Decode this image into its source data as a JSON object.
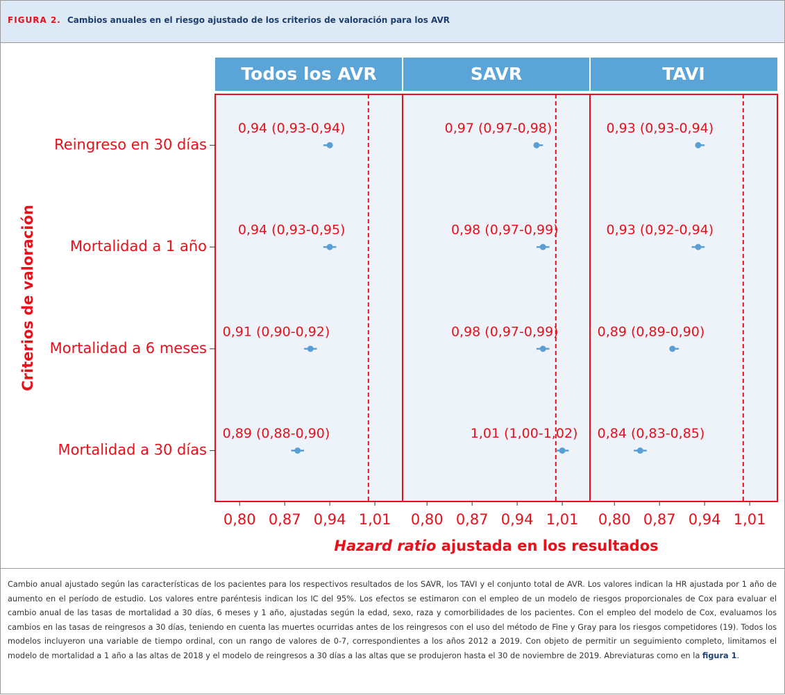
{
  "figure": {
    "label": "FIGURA 2.",
    "title": "Cambios anuales en el riesgo ajustado de los criterios de valoración para los AVR"
  },
  "chart_data": {
    "type": "forest",
    "ylabel": "Criterios de valoración",
    "xlabel_italic": "Hazard ratio",
    "xlabel_rest": " ajustada en los resultados",
    "categories": [
      "Reingreso en 30 días",
      "Mortalidad a 1 año",
      "Mortalidad a 6 meses",
      "Mortalidad a 30 días"
    ],
    "xlim": [
      0.762,
      1.053
    ],
    "xticks": [
      {
        "value": 0.8,
        "label": "0,80"
      },
      {
        "value": 0.87,
        "label": "0,87"
      },
      {
        "value": 0.94,
        "label": "0,94"
      },
      {
        "value": 1.01,
        "label": "1,01"
      }
    ],
    "reference": 1.0,
    "color": "#5a9fd4",
    "panels": [
      {
        "title": "Todos los AVR",
        "values": [
          0.94,
          0.94,
          0.91,
          0.89
        ],
        "lower": [
          0.93,
          0.93,
          0.9,
          0.88
        ],
        "upper": [
          0.94,
          0.95,
          0.92,
          0.9
        ],
        "value_labels": [
          "0,94 (0,93-0,94)",
          "0,94 (0,93-0,95)",
          "0,91 (0,90-0,92)",
          "0,89 (0,88-0,90)"
        ]
      },
      {
        "title": "SAVR",
        "values": [
          0.97,
          0.98,
          0.98,
          1.01
        ],
        "lower": [
          0.97,
          0.97,
          0.97,
          1.0
        ],
        "upper": [
          0.98,
          0.99,
          0.99,
          1.02
        ],
        "value_labels": [
          "0,97 (0,97-0,98)",
          "0,98 (0,97-0,99)",
          "0,98 (0,97-0,99)",
          "1,01 (1,00-1,02)"
        ]
      },
      {
        "title": "TAVI",
        "values": [
          0.93,
          0.93,
          0.89,
          0.84
        ],
        "lower": [
          0.93,
          0.92,
          0.89,
          0.83
        ],
        "upper": [
          0.94,
          0.94,
          0.9,
          0.85
        ],
        "value_labels": [
          "0,93 (0,93-0,94)",
          "0,93 (0,92-0,94)",
          "0,89 (0,89-0,90)",
          "0,84 (0,83-0,85)"
        ]
      }
    ]
  },
  "caption": {
    "text": "Cambio anual ajustado según las características de los pacientes para los respectivos resultados de los SAVR, los TAVI y el conjunto total de AVR. Los valores indican la HR ajustada por 1 año de aumento en el período de estudio. Los valores entre paréntesis indican los IC del 95%. Los efectos se estimaron con el empleo de un modelo de riesgos proporcionales de Cox para evaluar el cambio anual de las tasas de mortalidad a 30 días, 6 meses y 1 año, ajustadas según la edad, sexo, raza y comorbilidades de los pacientes. Con el empleo del modelo de Cox, evaluamos los cambios en las tasas de reingresos a 30 días, teniendo en cuenta las muertes ocurridas antes de los reingresos con el uso del método de Fine y Gray para los riesgos competidores (19). Todos los modelos incluyeron una variable de tiempo ordinal, con un rango de valores de 0-7, correspondientes a los años 2012 a 2019. Con objeto de permitir un seguimiento completo, limitamos el modelo de mortalidad a 1 año a las altas de 2018 y el modelo de reingresos a 30 días a las altas que se produjeron hasta el 30 de noviembre de 2019. Abreviaturas como en la ",
    "link": "figura 1",
    "end": "."
  }
}
